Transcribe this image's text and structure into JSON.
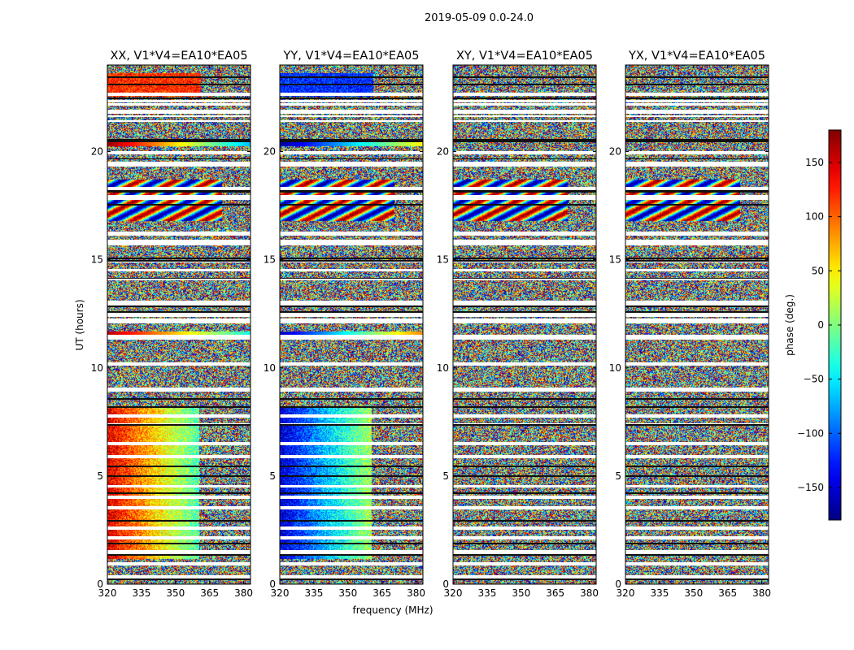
{
  "figure": {
    "suptitle": "2019-05-09 0.0-24.0",
    "xlabel": "frequency (MHz)",
    "ylabel": "UT (hours)",
    "colorbar": {
      "label": "phase (deg.)",
      "ticks": [
        150,
        100,
        50,
        0,
        -50,
        -100,
        -150
      ],
      "tick_labels": [
        "150",
        "100",
        "50",
        "0",
        "−50",
        "−100",
        "−150"
      ],
      "range": [
        -180,
        180
      ],
      "colormap": "jet"
    }
  },
  "chart_data": [
    {
      "type": "heatmap",
      "title": "XX, V1*V4=EA10*EA05",
      "xlim": [
        320,
        383
      ],
      "ylim": [
        0,
        24
      ],
      "xticks": [
        320,
        335,
        350,
        365,
        380
      ],
      "xtick_labels": [
        "320",
        "335",
        "350",
        "365",
        "380"
      ],
      "yticks": [
        0,
        5,
        10,
        15,
        20
      ],
      "ytick_labels": [
        "0",
        "5",
        "10",
        "15",
        "20"
      ],
      "value": "phase (deg.)"
    },
    {
      "type": "heatmap",
      "title": "YY, V1*V4=EA10*EA05",
      "xlim": [
        320,
        383
      ],
      "ylim": [
        0,
        24
      ],
      "xticks": [
        320,
        335,
        350,
        365,
        380
      ],
      "xtick_labels": [
        "320",
        "335",
        "350",
        "365",
        "380"
      ],
      "yticks": [
        0,
        5,
        10,
        15,
        20
      ],
      "ytick_labels": [
        "0",
        "5",
        "10",
        "15",
        "20"
      ],
      "value": "phase (deg.)"
    },
    {
      "type": "heatmap",
      "title": "XY, V1*V4=EA10*EA05",
      "xlim": [
        320,
        383
      ],
      "ylim": [
        0,
        24
      ],
      "xticks": [
        320,
        335,
        350,
        365,
        380
      ],
      "xtick_labels": [
        "320",
        "335",
        "350",
        "365",
        "380"
      ],
      "yticks": [
        0,
        5,
        10,
        15,
        20
      ],
      "ytick_labels": [
        "0",
        "5",
        "10",
        "15",
        "20"
      ],
      "value": "phase (deg.)"
    },
    {
      "type": "heatmap",
      "title": "YX, V1*V4=EA10*EA05",
      "xlim": [
        320,
        383
      ],
      "ylim": [
        0,
        24
      ],
      "xticks": [
        320,
        335,
        350,
        365,
        380
      ],
      "xtick_labels": [
        "320",
        "335",
        "350",
        "365",
        "380"
      ],
      "yticks": [
        0,
        5,
        10,
        15,
        20
      ],
      "ytick_labels": [
        "0",
        "5",
        "10",
        "15",
        "20"
      ],
      "value": "phase (deg.)"
    }
  ]
}
